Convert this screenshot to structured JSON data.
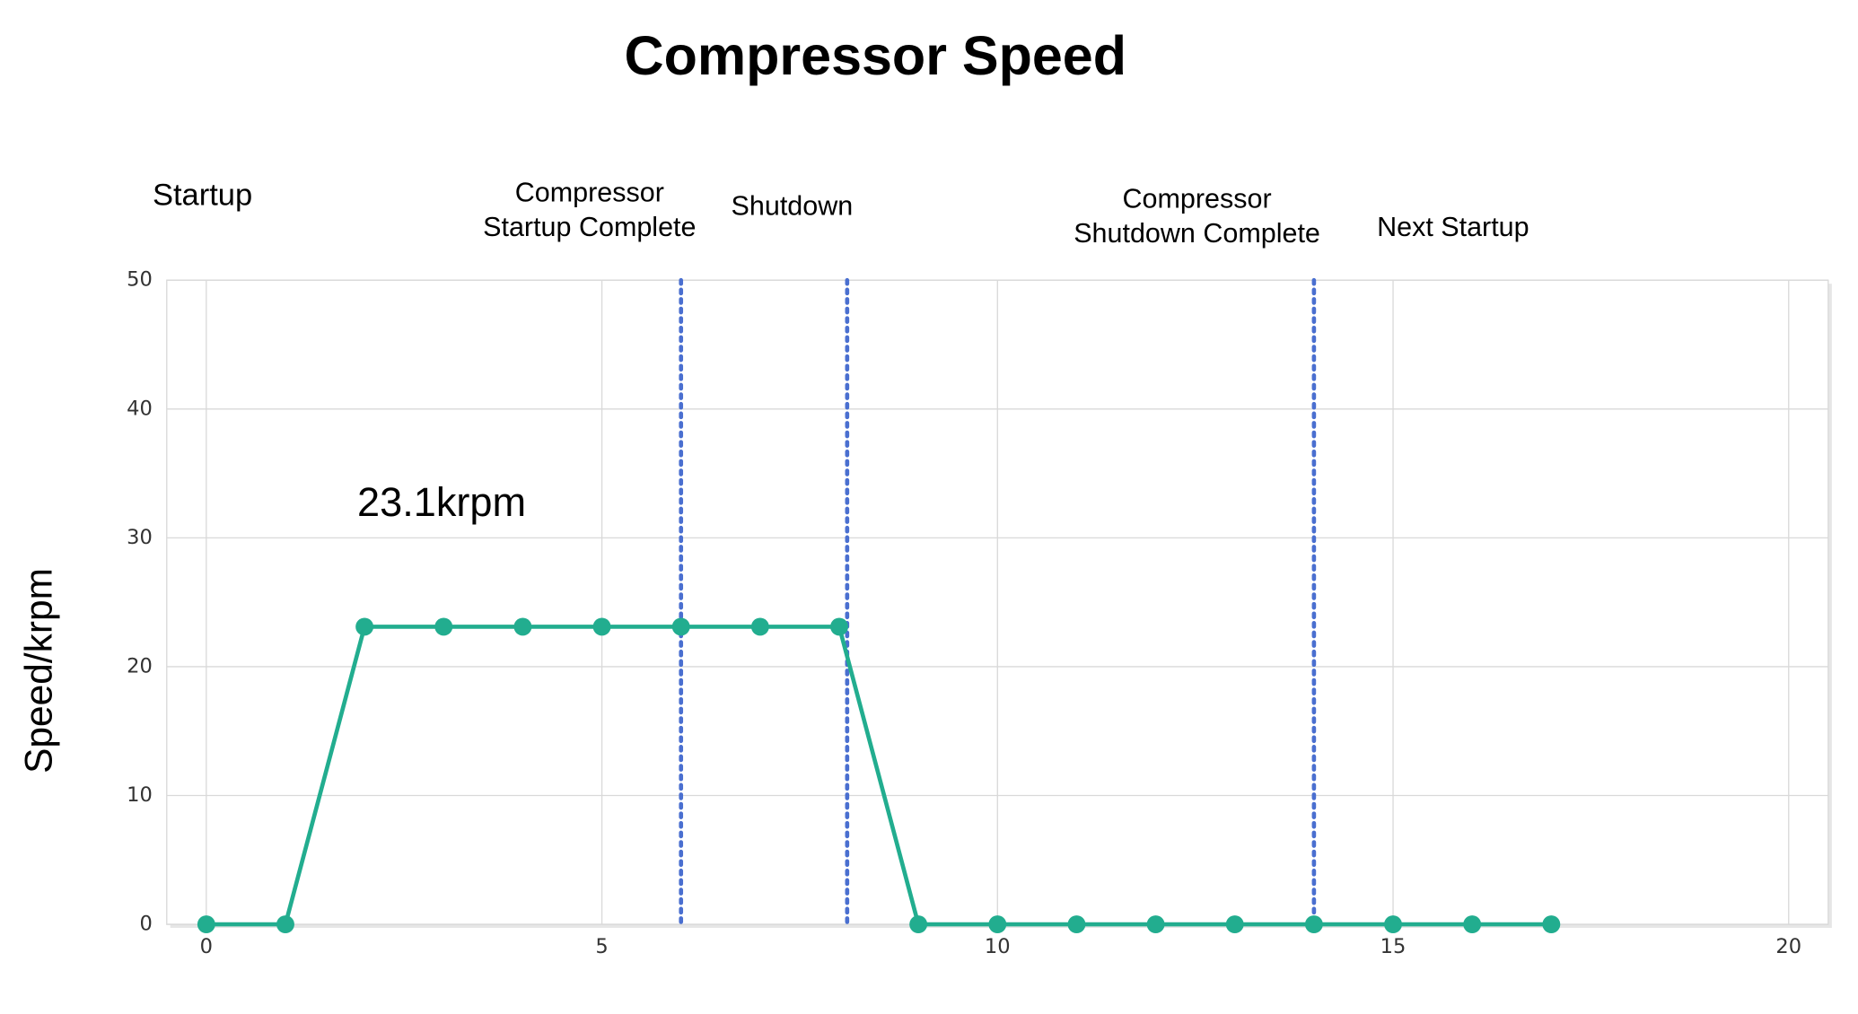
{
  "chart_data": {
    "type": "line",
    "title": "Compressor Speed",
    "y_label": "Speed/krpm",
    "x": [
      0,
      1,
      2,
      3,
      4,
      5,
      6,
      7,
      8,
      9,
      10,
      11,
      12,
      13,
      14,
      15,
      16,
      17
    ],
    "series": [
      {
        "color": "#22ad8f",
        "values": [
          0,
          0,
          23.1,
          23.1,
          23.1,
          23.1,
          23.1,
          23.1,
          23.1,
          0,
          0,
          0,
          0,
          0,
          0,
          0,
          0,
          0
        ]
      }
    ],
    "xlim": [
      -0.5,
      20.5
    ],
    "xticks": [
      0,
      5,
      10,
      15,
      20
    ],
    "ylim": [
      0,
      50
    ],
    "yticks": [
      0,
      10,
      20,
      30,
      40,
      50
    ],
    "grid": true,
    "vlines": {
      "color": "#4a6fd0",
      "values": [
        6,
        8.1,
        14
      ]
    },
    "annotations": [
      {
        "lines": [
          "Startup"
        ]
      },
      {
        "lines": [
          "Compressor",
          "Startup Complete"
        ]
      },
      {
        "lines": [
          "Shutdown"
        ]
      },
      {
        "lines": [
          "Compressor",
          "Shutdown Complete"
        ]
      },
      {
        "lines": [
          "Next Startup"
        ]
      }
    ],
    "value_label": "23.1krpm"
  }
}
